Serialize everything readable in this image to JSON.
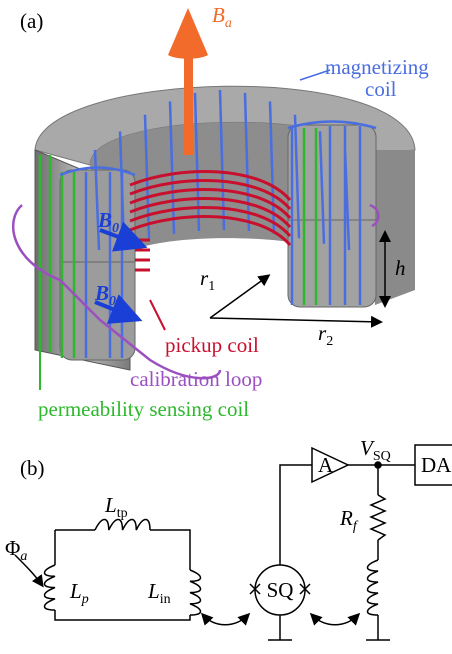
{
  "panel_a": {
    "label": "(a)",
    "field_applied": {
      "main": "B",
      "sub": "a"
    },
    "magnetizing_coil": [
      "magnetizing",
      "coil"
    ],
    "field_bias_1": {
      "main": "B",
      "sub": "0"
    },
    "field_bias_2": {
      "main": "B",
      "sub": "0"
    },
    "inner_radius": {
      "main": "r",
      "sub": "1"
    },
    "outer_radius": {
      "main": "r",
      "sub": "2"
    },
    "height": "h",
    "pickup_coil": "pickup coil",
    "calibration_loop": "calibration loop",
    "permeability_coil": "permeability sensing coil"
  },
  "panel_b": {
    "label": "(b)",
    "flux": {
      "main": "Φ",
      "sub": "a"
    },
    "transfer_inductor": {
      "main": "L",
      "sub": "tp"
    },
    "pickup_inductor": {
      "main": "L",
      "sub": "p"
    },
    "input_inductor": {
      "main": "L",
      "sub": "in"
    },
    "squid": "SQ",
    "amplifier": "A",
    "squid_voltage": {
      "main": "V",
      "sub": "SQ"
    },
    "feedback_resistor": {
      "main": "R",
      "sub": "f"
    },
    "daq": "DA"
  }
}
